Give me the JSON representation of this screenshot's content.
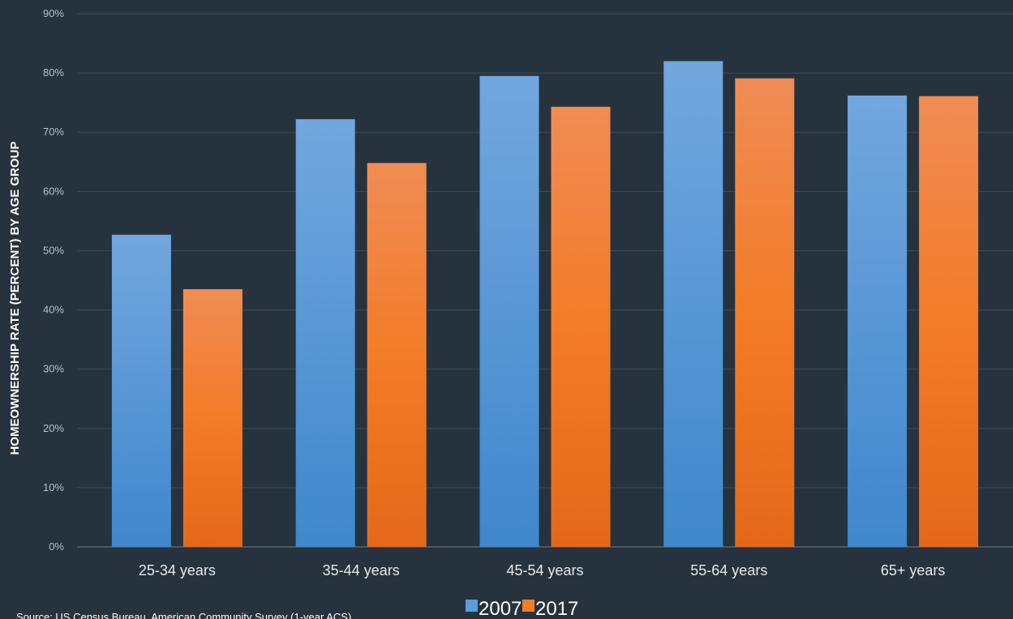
{
  "chart_data": {
    "type": "bar",
    "categories": [
      "25-34 years",
      "35-44 years",
      "45-54 years",
      "55-64 years",
      "65+ years"
    ],
    "series": [
      {
        "name": "2007",
        "values": [
          52.7,
          72.2,
          79.5,
          82.0,
          76.2
        ],
        "color": "#4f93d6"
      },
      {
        "name": "2017",
        "values": [
          43.5,
          64.8,
          74.3,
          79.1,
          76.1
        ],
        "color": "#f07d2b"
      }
    ],
    "ylabel": "HOMEOWNERSHIP RATE (PERCENT) BY AGE GROUP",
    "xlabel": "",
    "ylim": [
      0,
      90
    ],
    "yticks": [
      "0%",
      "10%",
      "20%",
      "30%",
      "40%",
      "50%",
      "60%",
      "70%",
      "80%",
      "90%"
    ],
    "grid": true,
    "legend_position": "bottom",
    "source": "Source: US Census Bureau, American Community Survey (1-year ACS)"
  }
}
